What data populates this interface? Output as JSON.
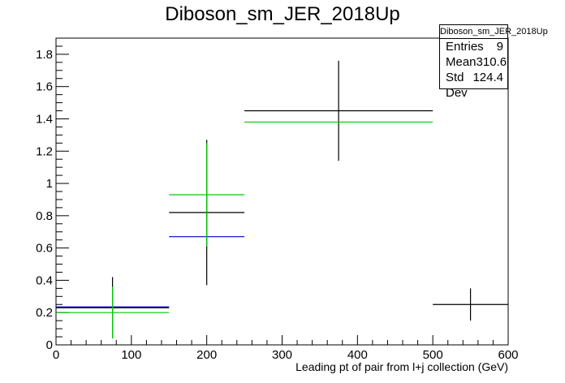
{
  "title": "Diboson_sm_JER_2018Up",
  "stats": {
    "name": "Diboson_sm_JER_2018Up",
    "rows": [
      {
        "label": "Entries",
        "value": "9"
      },
      {
        "label": "Mean",
        "value": "310.6"
      },
      {
        "label": "Std Dev",
        "value": "124.4"
      }
    ]
  },
  "chart_data": {
    "type": "scatter",
    "title": "Diboson_sm_JER_2018Up",
    "xlabel": "Leading pt of pair from l+j collection (GeV)",
    "ylabel": "",
    "xlim": [
      0,
      600
    ],
    "ylim": [
      0,
      1.9
    ],
    "xticks": [
      0,
      100,
      200,
      300,
      400,
      500,
      600
    ],
    "yticks": [
      0,
      0.2,
      0.4,
      0.6,
      0.8,
      1,
      1.2,
      1.4,
      1.6,
      1.8
    ],
    "xtick_labels": [
      "0",
      "100",
      "200",
      "300",
      "400",
      "500",
      "600"
    ],
    "ytick_labels": [
      "0",
      "0.2",
      "0.4",
      "0.6",
      "0.8",
      "1",
      "1.2",
      "1.4",
      "1.6",
      "1.8"
    ],
    "grid": false,
    "series": [
      {
        "color": "#000000",
        "points": [
          {
            "xlo": 0,
            "xhi": 150,
            "y": 0.23,
            "err": 0.19
          },
          {
            "xlo": 150,
            "xhi": 250,
            "y": 0.82,
            "err": 0.45
          },
          {
            "xlo": 250,
            "xhi": 500,
            "y": 1.45,
            "err": 0.31
          },
          {
            "xlo": 500,
            "xhi": 600,
            "y": 0.25,
            "err": 0.1
          }
        ]
      },
      {
        "color": "#0000cc",
        "points": [
          {
            "xlo": 0,
            "xhi": 150,
            "y": 0.235,
            "err": 0
          },
          {
            "xlo": 150,
            "xhi": 250,
            "y": 0.67,
            "err": 0
          }
        ]
      },
      {
        "color": "#00cc00",
        "points": [
          {
            "xlo": 0,
            "xhi": 150,
            "y": 0.2,
            "err": 0.16
          },
          {
            "xlo": 150,
            "xhi": 250,
            "y": 0.93,
            "err": 0.32
          },
          {
            "xlo": 250,
            "xhi": 500,
            "y": 1.38,
            "err": 0
          }
        ]
      }
    ]
  }
}
